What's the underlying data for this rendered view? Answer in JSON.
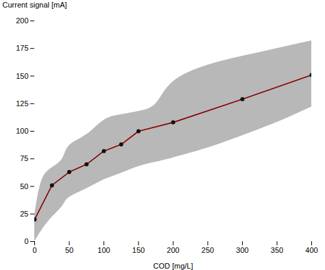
{
  "chart_data": {
    "type": "line",
    "xlabel": "COD [mg/L]",
    "ylabel": "Current signal [mA]",
    "x": [
      0,
      25,
      50,
      75,
      100,
      125,
      150,
      200,
      300,
      400
    ],
    "series": [
      {
        "type": "line",
        "color": "#8b0000",
        "values": [
          20,
          51,
          63,
          70,
          82,
          88,
          100,
          108,
          129,
          151
        ]
      },
      {
        "type": "scatter",
        "color": "#111111",
        "values": [
          20,
          51,
          63,
          70,
          82,
          88,
          100,
          108,
          129,
          151
        ]
      }
    ],
    "band": {
      "x": [
        0,
        10,
        25,
        40,
        50,
        75,
        100,
        125,
        150,
        175,
        200,
        250,
        300,
        350,
        400
      ],
      "upper": [
        24,
        55,
        67,
        75,
        87,
        97,
        110,
        115,
        118,
        125,
        145,
        160,
        168,
        175,
        182
      ],
      "lower": [
        0,
        10,
        22,
        32,
        40,
        48,
        56,
        62,
        68,
        72,
        76,
        85,
        96,
        108,
        122
      ],
      "color": "#b8b8b8"
    },
    "xlim": [
      0,
      400
    ],
    "ylim": [
      0,
      200
    ],
    "xticks": [
      0,
      50,
      100,
      150,
      200,
      250,
      300,
      350,
      400
    ],
    "yticks": [
      0,
      25,
      50,
      75,
      100,
      125,
      150,
      175,
      200
    ],
    "grid": false
  }
}
